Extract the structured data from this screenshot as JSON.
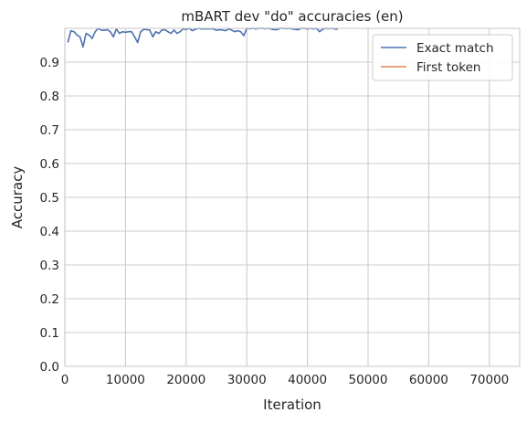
{
  "chart_data": {
    "type": "line",
    "title": "mBART dev \"do\" accuracies (en)",
    "xlabel": "Iteration",
    "ylabel": "Accuracy",
    "xlim": [
      0,
      75000
    ],
    "ylim": [
      0,
      1.0
    ],
    "xticks": [
      "0",
      "10000",
      "20000",
      "30000",
      "40000",
      "50000",
      "60000",
      "70000"
    ],
    "xtick_values": [
      0,
      10000,
      20000,
      30000,
      40000,
      50000,
      60000,
      70000
    ],
    "yticks": [
      "0.0",
      "0.1",
      "0.2",
      "0.3",
      "0.4",
      "0.5",
      "0.6",
      "0.7",
      "0.8",
      "0.9"
    ],
    "ytick_values": [
      0.0,
      0.1,
      0.2,
      0.3,
      0.4,
      0.5,
      0.6,
      0.7,
      0.8,
      0.9
    ],
    "grid": true,
    "legend_position": "top-right",
    "series": [
      {
        "name": "Exact match",
        "color": "#4c72b0",
        "x": [
          500,
          1000,
          1500,
          2000,
          2500,
          3000,
          3500,
          4000,
          4500,
          5000,
          5500,
          6000,
          6500,
          7000,
          7500,
          8000,
          8500,
          9000,
          9500,
          10000,
          10500,
          11000,
          11500,
          12000,
          12500,
          13000,
          13500,
          14000,
          14500,
          15000,
          15500,
          16000,
          16500,
          17000,
          17500,
          18000,
          18500,
          19000,
          19500,
          20000,
          20500,
          21000,
          21500,
          22000,
          22500,
          23000,
          23500,
          24000,
          24500,
          25000,
          25500,
          26000,
          26500,
          27000,
          27500,
          28000,
          28500,
          29000,
          29500,
          30000,
          30500,
          31000,
          31500,
          32000,
          32500,
          33000,
          33500,
          34000,
          34500,
          35000,
          35500,
          36000,
          36500,
          37000,
          37500,
          38000,
          38500,
          39000,
          39500,
          40000,
          40500,
          41000,
          41500,
          42000,
          42500,
          43000,
          43500,
          44000,
          44500,
          45000
        ],
        "y": [
          0.958,
          0.993,
          0.99,
          0.98,
          0.975,
          0.945,
          0.985,
          0.98,
          0.97,
          0.99,
          1.0,
          0.995,
          0.994,
          0.996,
          0.99,
          0.975,
          0.998,
          0.985,
          0.99,
          0.988,
          0.99,
          0.99,
          0.975,
          0.958,
          0.99,
          0.997,
          0.996,
          0.995,
          0.975,
          0.99,
          0.985,
          0.995,
          0.996,
          0.99,
          0.985,
          0.995,
          0.985,
          0.99,
          0.998,
          0.997,
          1.0,
          0.993,
          0.997,
          1.0,
          0.998,
          0.999,
          0.998,
          0.999,
          0.998,
          0.994,
          0.996,
          0.995,
          0.993,
          0.998,
          0.995,
          0.99,
          0.993,
          0.99,
          0.978,
          1.0,
          0.999,
          1.0,
          0.998,
          1.0,
          1.0,
          0.999,
          1.0,
          0.998,
          0.996,
          0.996,
          1.0,
          1.0,
          0.999,
          1.0,
          0.998,
          0.997,
          0.996,
          1.0,
          1.0,
          0.998,
          1.0,
          0.998,
          1.0,
          0.99,
          0.997,
          1.0,
          0.999,
          1.0,
          0.998,
          0.997
        ]
      },
      {
        "name": "First token",
        "color": "#dd8452",
        "x": [],
        "y": []
      }
    ]
  }
}
